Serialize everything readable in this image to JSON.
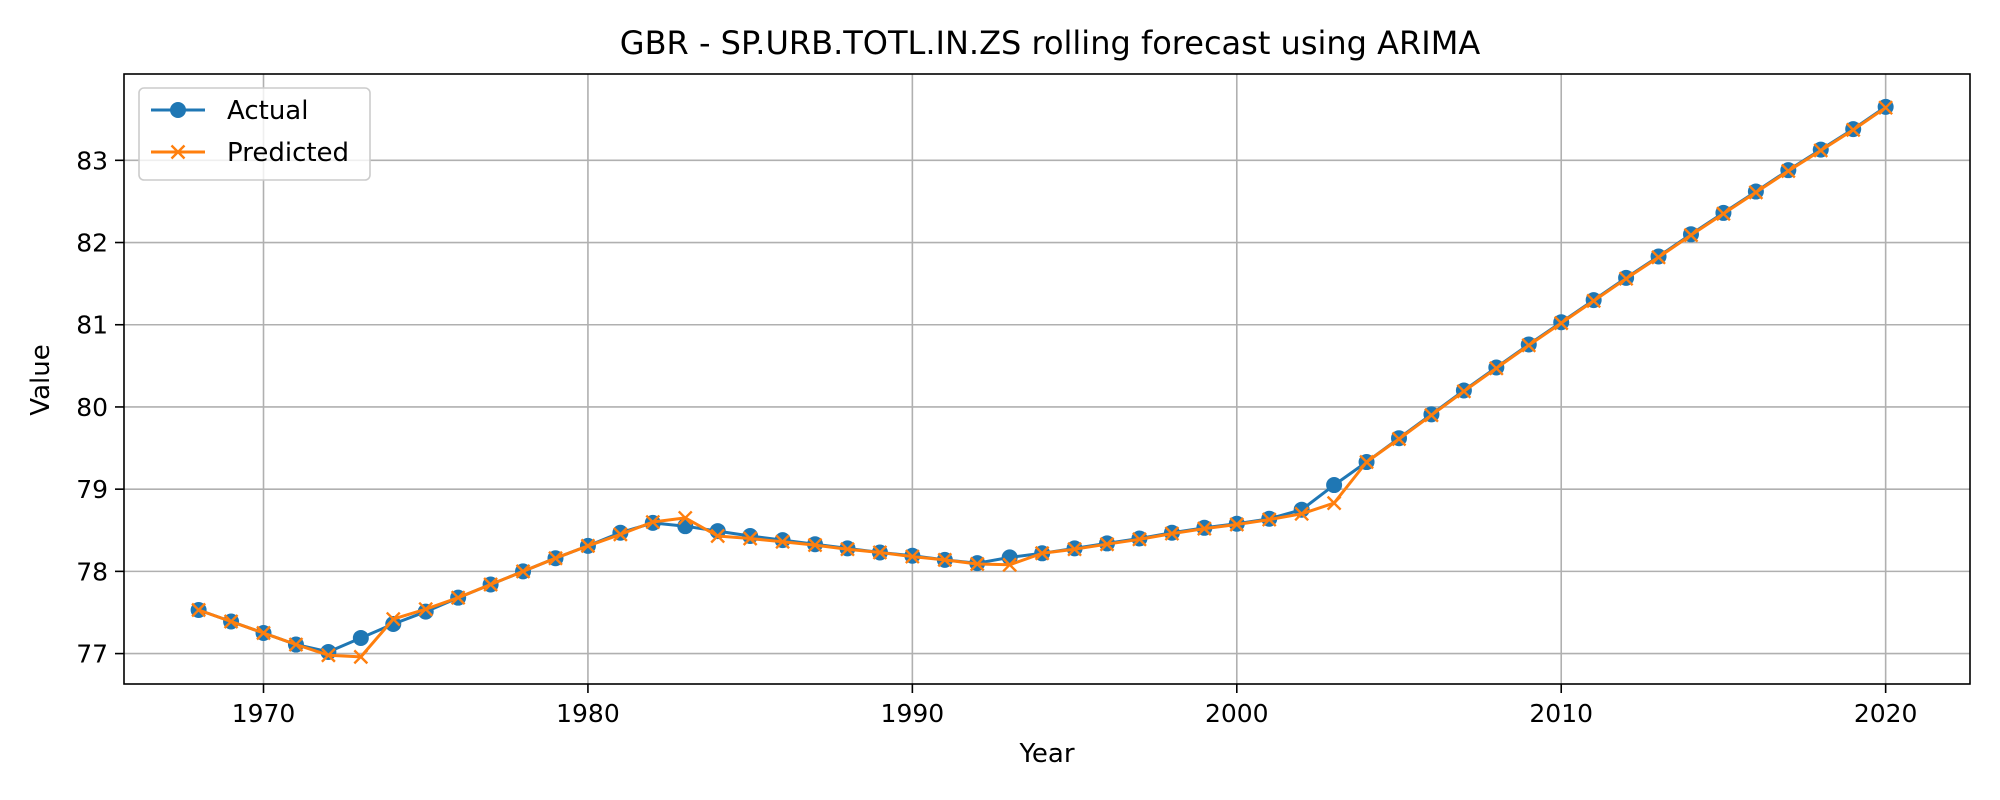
{
  "chart_data": {
    "type": "line",
    "title": "GBR - SP.URB.TOTL.IN.ZS rolling forecast using ARIMA",
    "xlabel": "Year",
    "ylabel": "Value",
    "xlim": [
      1965.7,
      2022.6
    ],
    "ylim": [
      76.63,
      84.05
    ],
    "xticks": [
      1970,
      1980,
      1990,
      2000,
      2010,
      2020
    ],
    "yticks": [
      77,
      78,
      79,
      80,
      81,
      82,
      83
    ],
    "grid": true,
    "legend_position": "upper-left",
    "x": [
      1968,
      1969,
      1970,
      1971,
      1972,
      1973,
      1974,
      1975,
      1976,
      1977,
      1978,
      1979,
      1980,
      1981,
      1982,
      1983,
      1984,
      1985,
      1986,
      1987,
      1988,
      1989,
      1990,
      1991,
      1992,
      1993,
      1994,
      1995,
      1996,
      1997,
      1998,
      1999,
      2000,
      2001,
      2002,
      2003,
      2004,
      2005,
      2006,
      2007,
      2008,
      2009,
      2010,
      2011,
      2012,
      2013,
      2014,
      2015,
      2016,
      2017,
      2018,
      2019,
      2020
    ],
    "series": [
      {
        "name": "Actual",
        "color": "#1f77b4",
        "marker": "circle",
        "values": [
          77.53,
          77.39,
          77.25,
          77.11,
          77.02,
          77.19,
          77.36,
          77.51,
          77.68,
          77.84,
          78.0,
          78.16,
          78.31,
          78.47,
          78.59,
          78.55,
          78.49,
          78.43,
          78.38,
          78.33,
          78.28,
          78.23,
          78.19,
          78.14,
          78.1,
          78.17,
          78.22,
          78.28,
          78.34,
          78.4,
          78.47,
          78.53,
          78.58,
          78.64,
          78.75,
          79.05,
          79.33,
          79.62,
          79.91,
          80.2,
          80.48,
          80.76,
          81.03,
          81.3,
          81.57,
          81.83,
          82.1,
          82.36,
          82.62,
          82.88,
          83.13,
          83.38,
          83.65
        ]
      },
      {
        "name": "Predicted",
        "color": "#ff7f0e",
        "marker": "x",
        "values": [
          77.53,
          77.39,
          77.25,
          77.11,
          76.98,
          76.96,
          77.42,
          77.54,
          77.68,
          77.84,
          78.0,
          78.16,
          78.31,
          78.45,
          78.6,
          78.65,
          78.43,
          78.4,
          78.36,
          78.32,
          78.27,
          78.23,
          78.18,
          78.14,
          78.09,
          78.08,
          78.22,
          78.27,
          78.33,
          78.39,
          78.46,
          78.52,
          78.57,
          78.63,
          78.7,
          78.83,
          79.33,
          79.61,
          79.9,
          80.19,
          80.47,
          80.75,
          81.02,
          81.29,
          81.56,
          81.82,
          82.09,
          82.35,
          82.61,
          82.87,
          83.12,
          83.37,
          83.64
        ]
      }
    ]
  }
}
